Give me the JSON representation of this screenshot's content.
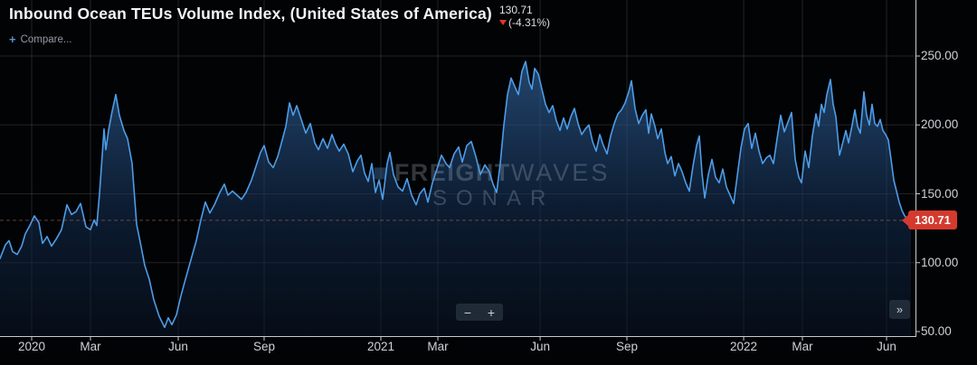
{
  "header": {
    "title": "Inbound Ocean TEUs Volume Index, (United States of America)",
    "last_value": "130.71",
    "change": "(-4.31%)",
    "change_direction": "down",
    "compare_icon": "+",
    "compare_label": "Compare..."
  },
  "watermark": {
    "brand_bold": "FREIGHT",
    "brand_light": "WAVES",
    "product": "SONAR"
  },
  "controls": {
    "zoom_out": "−",
    "zoom_in": "+",
    "page_forward": "»"
  },
  "badge": {
    "value": "130.71"
  },
  "colors": {
    "background": "#020304",
    "line": "#4d9ce8",
    "fill_top": "rgba(58,118,185,0.60)",
    "fill_mid": "rgba(20,48,86,0.55)",
    "fill_bottom": "rgba(10,22,42,0.50)",
    "grid": "rgba(255,255,255,0.13)",
    "axis": "#c7cbd0",
    "current_line": "rgba(205,118,106,0.5)",
    "badge_red": "#d43a2e",
    "watermark": "rgba(150,165,180,0.32)"
  },
  "chart_data": {
    "type": "area",
    "title": "Inbound Ocean TEUs Volume Index, (United States of America)",
    "x_range": "Dec 2019 - Jun 2022",
    "x_unit": "px position across 1012px plot width (time axis)",
    "ylim": [
      50,
      260
    ],
    "grid": true,
    "y_axis": {
      "ticks": [
        {
          "label": "250.00",
          "v": 250
        },
        {
          "label": "200.00",
          "v": 200
        },
        {
          "label": "150.00",
          "v": 150
        },
        {
          "label": "100.00",
          "v": 100
        },
        {
          "label": "50.00",
          "v": 50
        }
      ]
    },
    "x_axis": {
      "ticks": [
        {
          "label": "2020",
          "f": 0.0346
        },
        {
          "label": "Mar",
          "f": 0.0988
        },
        {
          "label": "Jun",
          "f": 0.1947
        },
        {
          "label": "Sep",
          "f": 0.2885
        },
        {
          "label": "2021",
          "f": 0.416
        },
        {
          "label": "Mar",
          "f": 0.4783
        },
        {
          "label": "Jun",
          "f": 0.59
        },
        {
          "label": "Sep",
          "f": 0.6848
        },
        {
          "label": "2022",
          "f": 0.8123
        },
        {
          "label": "Mar",
          "f": 0.8765
        },
        {
          "label": "Jun",
          "f": 0.9684
        }
      ]
    },
    "last": {
      "value": 130.71,
      "change_pct": -4.31
    },
    "series": [
      {
        "name": "Inbound Ocean TEUs Volume Index (United States of America)",
        "points": [
          [
            0,
            103
          ],
          [
            6,
            113
          ],
          [
            10,
            116
          ],
          [
            14,
            108
          ],
          [
            19,
            106
          ],
          [
            24,
            112
          ],
          [
            28,
            121
          ],
          [
            33,
            127
          ],
          [
            38,
            134
          ],
          [
            43,
            129
          ],
          [
            47,
            114
          ],
          [
            52,
            119
          ],
          [
            57,
            112
          ],
          [
            62,
            117
          ],
          [
            68,
            124
          ],
          [
            74,
            142
          ],
          [
            79,
            135
          ],
          [
            84,
            137
          ],
          [
            89,
            143
          ],
          [
            95,
            126
          ],
          [
            100,
            124
          ],
          [
            104,
            131
          ],
          [
            107,
            127
          ],
          [
            110,
            150
          ],
          [
            113,
            178
          ],
          [
            115,
            197
          ],
          [
            117,
            182
          ],
          [
            120,
            196
          ],
          [
            124,
            210
          ],
          [
            128,
            222
          ],
          [
            132,
            207
          ],
          [
            137,
            196
          ],
          [
            141,
            190
          ],
          [
            146,
            172
          ],
          [
            151,
            128
          ],
          [
            155,
            115
          ],
          [
            160,
            98
          ],
          [
            165,
            88
          ],
          [
            170,
            73
          ],
          [
            176,
            61
          ],
          [
            182,
            53
          ],
          [
            186,
            60
          ],
          [
            190,
            55
          ],
          [
            195,
            62
          ],
          [
            200,
            76
          ],
          [
            205,
            88
          ],
          [
            211,
            102
          ],
          [
            217,
            116
          ],
          [
            222,
            131
          ],
          [
            227,
            144
          ],
          [
            232,
            136
          ],
          [
            237,
            142
          ],
          [
            243,
            151
          ],
          [
            248,
            157
          ],
          [
            252,
            149
          ],
          [
            257,
            152
          ],
          [
            262,
            149
          ],
          [
            267,
            146
          ],
          [
            272,
            151
          ],
          [
            278,
            160
          ],
          [
            283,
            170
          ],
          [
            288,
            180
          ],
          [
            292,
            185
          ],
          [
            297,
            173
          ],
          [
            302,
            169
          ],
          [
            307,
            177
          ],
          [
            312,
            189
          ],
          [
            316,
            199
          ],
          [
            320,
            216
          ],
          [
            324,
            207
          ],
          [
            328,
            214
          ],
          [
            333,
            204
          ],
          [
            338,
            194
          ],
          [
            343,
            201
          ],
          [
            348,
            187
          ],
          [
            352,
            182
          ],
          [
            357,
            190
          ],
          [
            362,
            183
          ],
          [
            367,
            193
          ],
          [
            371,
            186
          ],
          [
            375,
            181
          ],
          [
            380,
            186
          ],
          [
            385,
            179
          ],
          [
            390,
            166
          ],
          [
            395,
            174
          ],
          [
            399,
            178
          ],
          [
            403,
            165
          ],
          [
            407,
            159
          ],
          [
            411,
            172
          ],
          [
            415,
            151
          ],
          [
            419,
            160
          ],
          [
            423,
            146
          ],
          [
            428,
            172
          ],
          [
            431,
            180
          ],
          [
            435,
            164
          ],
          [
            440,
            155
          ],
          [
            445,
            152
          ],
          [
            450,
            161
          ],
          [
            455,
            149
          ],
          [
            460,
            142
          ],
          [
            464,
            150
          ],
          [
            469,
            154
          ],
          [
            473,
            144
          ],
          [
            478,
            158
          ],
          [
            483,
            168
          ],
          [
            488,
            178
          ],
          [
            493,
            172
          ],
          [
            497,
            169
          ],
          [
            502,
            179
          ],
          [
            507,
            184
          ],
          [
            511,
            173
          ],
          [
            516,
            185
          ],
          [
            521,
            188
          ],
          [
            526,
            177
          ],
          [
            531,
            164
          ],
          [
            536,
            171
          ],
          [
            541,
            166
          ],
          [
            545,
            157
          ],
          [
            549,
            151
          ],
          [
            553,
            172
          ],
          [
            557,
            200
          ],
          [
            561,
            222
          ],
          [
            565,
            234
          ],
          [
            569,
            228
          ],
          [
            573,
            222
          ],
          [
            577,
            239
          ],
          [
            581,
            246
          ],
          [
            585,
            231
          ],
          [
            588,
            226
          ],
          [
            591,
            241
          ],
          [
            595,
            237
          ],
          [
            599,
            226
          ],
          [
            603,
            215
          ],
          [
            607,
            209
          ],
          [
            611,
            214
          ],
          [
            615,
            203
          ],
          [
            619,
            196
          ],
          [
            623,
            205
          ],
          [
            627,
            197
          ],
          [
            631,
            206
          ],
          [
            635,
            212
          ],
          [
            639,
            201
          ],
          [
            643,
            193
          ],
          [
            647,
            197
          ],
          [
            651,
            200
          ],
          [
            655,
            188
          ],
          [
            659,
            181
          ],
          [
            663,
            193
          ],
          [
            667,
            185
          ],
          [
            671,
            179
          ],
          [
            675,
            192
          ],
          [
            679,
            201
          ],
          [
            683,
            208
          ],
          [
            687,
            211
          ],
          [
            691,
            216
          ],
          [
            695,
            224
          ],
          [
            698,
            232
          ],
          [
            702,
            212
          ],
          [
            706,
            201
          ],
          [
            710,
            207
          ],
          [
            714,
            211
          ],
          [
            717,
            194
          ],
          [
            720,
            208
          ],
          [
            724,
            199
          ],
          [
            727,
            190
          ],
          [
            731,
            197
          ],
          [
            735,
            180
          ],
          [
            738,
            172
          ],
          [
            742,
            177
          ],
          [
            746,
            163
          ],
          [
            750,
            172
          ],
          [
            754,
            166
          ],
          [
            758,
            158
          ],
          [
            762,
            152
          ],
          [
            766,
            170
          ],
          [
            770,
            185
          ],
          [
            773,
            192
          ],
          [
            776,
            165
          ],
          [
            779,
            147
          ],
          [
            783,
            164
          ],
          [
            787,
            175
          ],
          [
            791,
            162
          ],
          [
            795,
            158
          ],
          [
            799,
            168
          ],
          [
            803,
            155
          ],
          [
            807,
            149
          ],
          [
            811,
            143
          ],
          [
            815,
            163
          ],
          [
            819,
            183
          ],
          [
            823,
            197
          ],
          [
            827,
            201
          ],
          [
            831,
            183
          ],
          [
            835,
            194
          ],
          [
            839,
            181
          ],
          [
            843,
            172
          ],
          [
            847,
            176
          ],
          [
            851,
            178
          ],
          [
            855,
            172
          ],
          [
            859,
            190
          ],
          [
            863,
            207
          ],
          [
            867,
            195
          ],
          [
            871,
            202
          ],
          [
            875,
            209
          ],
          [
            879,
            175
          ],
          [
            883,
            162
          ],
          [
            886,
            158
          ],
          [
            890,
            181
          ],
          [
            894,
            169
          ],
          [
            898,
            192
          ],
          [
            902,
            208
          ],
          [
            905,
            199
          ],
          [
            908,
            215
          ],
          [
            911,
            209
          ],
          [
            914,
            222
          ],
          [
            918,
            233
          ],
          [
            921,
            215
          ],
          [
            924,
            206
          ],
          [
            928,
            178
          ],
          [
            932,
            188
          ],
          [
            935,
            196
          ],
          [
            938,
            187
          ],
          [
            942,
            200
          ],
          [
            945,
            211
          ],
          [
            948,
            199
          ],
          [
            951,
            194
          ],
          [
            955,
            224
          ],
          [
            958,
            207
          ],
          [
            961,
            200
          ],
          [
            964,
            215
          ],
          [
            967,
            201
          ],
          [
            970,
            199
          ],
          [
            973,
            204
          ],
          [
            976,
            196
          ],
          [
            979,
            193
          ],
          [
            982,
            189
          ],
          [
            985,
            175
          ],
          [
            988,
            160
          ],
          [
            991,
            152
          ],
          [
            994,
            144
          ],
          [
            997,
            138
          ],
          [
            1000,
            134
          ],
          [
            1004,
            131
          ],
          [
            1007,
            130.7
          ]
        ]
      }
    ]
  }
}
